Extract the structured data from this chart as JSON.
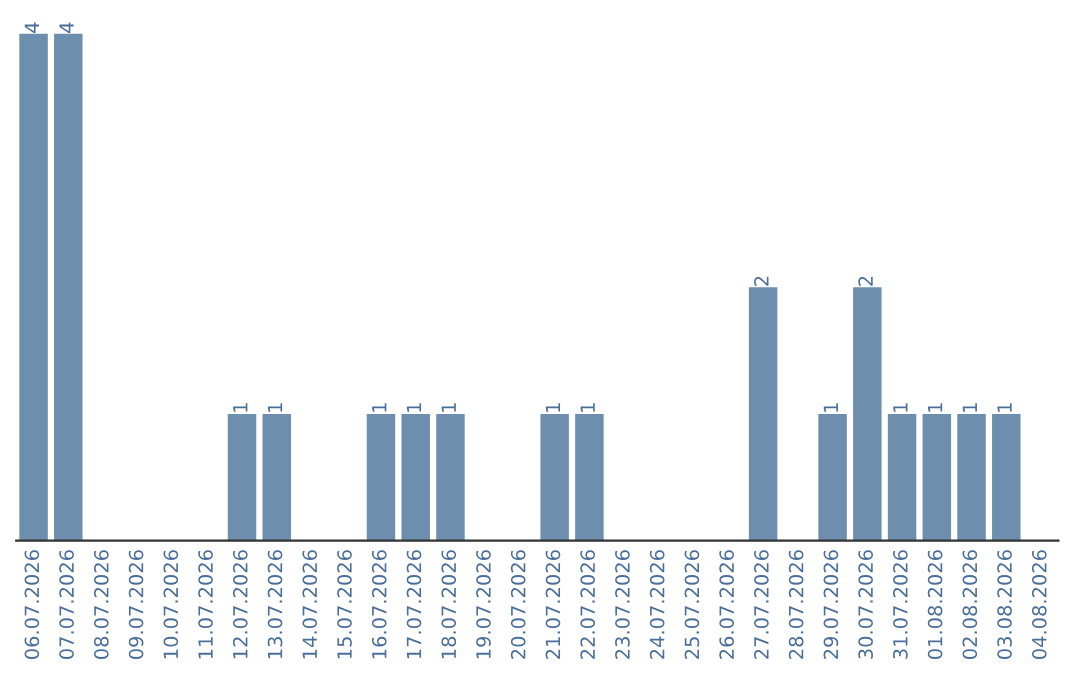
{
  "chart_data": {
    "type": "bar",
    "categories": [
      "06.07.2026",
      "07.07.2026",
      "08.07.2026",
      "09.07.2026",
      "10.07.2026",
      "11.07.2026",
      "12.07.2026",
      "13.07.2026",
      "14.07.2026",
      "15.07.2026",
      "16.07.2026",
      "17.07.2026",
      "18.07.2026",
      "19.07.2026",
      "20.07.2026",
      "21.07.2026",
      "22.07.2026",
      "23.07.2026",
      "24.07.2026",
      "25.07.2026",
      "26.07.2026",
      "27.07.2026",
      "28.07.2026",
      "29.07.2026",
      "30.07.2026",
      "31.07.2026",
      "01.08.2026",
      "02.08.2026",
      "03.08.2026",
      "04.08.2026"
    ],
    "values": [
      4,
      4,
      0,
      0,
      0,
      0,
      1,
      1,
      0,
      0,
      1,
      1,
      1,
      0,
      0,
      1,
      1,
      0,
      0,
      0,
      0,
      2,
      0,
      1,
      2,
      1,
      1,
      1,
      1,
      0
    ],
    "value_labels": [
      "4",
      "4",
      null,
      null,
      null,
      null,
      "1",
      "1",
      null,
      null,
      "1",
      "1",
      "1",
      null,
      null,
      "1",
      "1",
      null,
      null,
      null,
      null,
      "2",
      null,
      "1",
      "2",
      "1",
      "1",
      "1",
      "1",
      null
    ],
    "color": "#6d8fad",
    "grid": false,
    "legend": false,
    "tick_labels": "x"
  }
}
